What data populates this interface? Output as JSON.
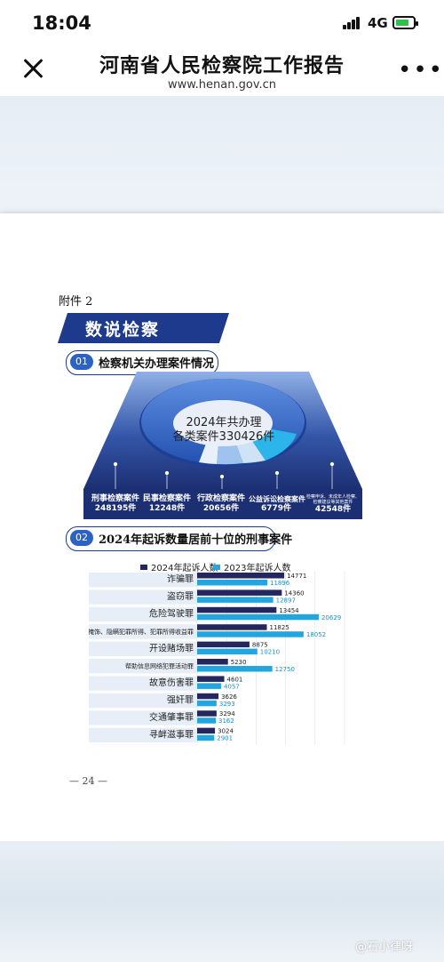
{
  "status_bar": {
    "time": "18:04",
    "network": "4G"
  },
  "nav": {
    "title": "河南省人民检察院工作报告",
    "url": "www.henan.gov.cn"
  },
  "doc": {
    "attachment_label": "附件 2",
    "banner": "数说检察",
    "section1": {
      "num": "01",
      "title": "检察机关办理案件情况"
    },
    "ring_center": [
      "2024年共办理",
      "各类案件330426件"
    ],
    "categories": [
      {
        "label": "刑事检察案件",
        "value": "248195件"
      },
      {
        "label": "民事检察案件",
        "value": "12248件"
      },
      {
        "label": "行政检察案件",
        "value": "20656件"
      },
      {
        "label": "公益诉讼检察案件",
        "value": "6779件"
      },
      {
        "label": "检察申诉、未成年人检察、检察建议等其他案件",
        "value": "42548件"
      }
    ],
    "section2": {
      "num": "02",
      "title": "2024年起诉数量居前十位的刑事案件"
    },
    "page_number": "— 24 —"
  },
  "chart_data": {
    "type": "bar",
    "orientation": "horizontal",
    "categories": [
      "诈骗罪",
      "盗窃罪",
      "危险驾驶罪",
      "掩饰、隐瞒犯罪所得、犯罪所得收益罪",
      "开设赌场罪",
      "帮助信息网络犯罪活动罪",
      "故意伤害罪",
      "强奸罪",
      "交通肇事罪",
      "寻衅滋事罪"
    ],
    "series": [
      {
        "name": "2024年起诉人数",
        "color": "#24275f",
        "values": [
          14771,
          14360,
          13454,
          11825,
          8875,
          5230,
          4601,
          3626,
          3294,
          3024
        ]
      },
      {
        "name": "2023年起诉人数",
        "color": "#23a6df",
        "values": [
          11896,
          12897,
          20629,
          18052,
          10210,
          12750,
          4057,
          3293,
          3162,
          2901
        ]
      }
    ],
    "xlim": [
      0,
      25000
    ],
    "grid": true,
    "legend": "top"
  },
  "watermark": "@石小律呀",
  "colors": {
    "accent": "#1d3a8c",
    "ring": "#2f66c6",
    "bar2024": "#24275f",
    "bar2023": "#23a6df"
  }
}
